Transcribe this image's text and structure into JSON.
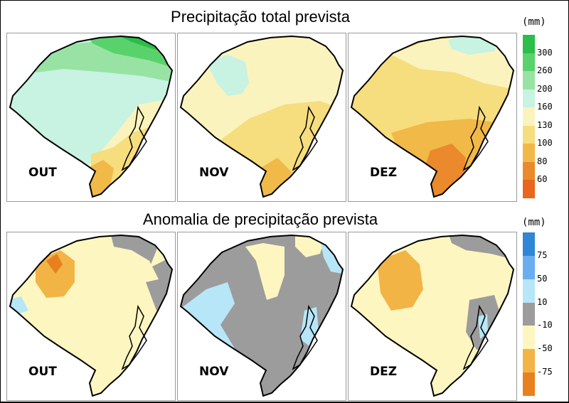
{
  "titles": {
    "total": "Precipitação total prevista",
    "anomaly": "Anomalia de precipitação prevista"
  },
  "months": [
    "OUT",
    "NOV",
    "DEZ"
  ],
  "legend_total": {
    "unit": "(mm)",
    "ticks": [
      "300",
      "260",
      "200",
      "160",
      "130",
      "100",
      "80",
      "60"
    ],
    "colors": [
      "#2cbd4a",
      "#5ad26c",
      "#98e3a4",
      "#c8f2e2",
      "#fbf3bd",
      "#f6dd7e",
      "#f0b948",
      "#ea8a2c",
      "#e8671c"
    ]
  },
  "legend_anomaly": {
    "unit": "(mm)",
    "ticks": [
      "75",
      "50",
      "10",
      "-10",
      "-50",
      "-75"
    ],
    "colors": [
      "#2f86d6",
      "#6aaef0",
      "#b7e6f8",
      "#9c9c9c",
      "#fdf6c0",
      "#f2b445",
      "#e88020"
    ]
  }
}
